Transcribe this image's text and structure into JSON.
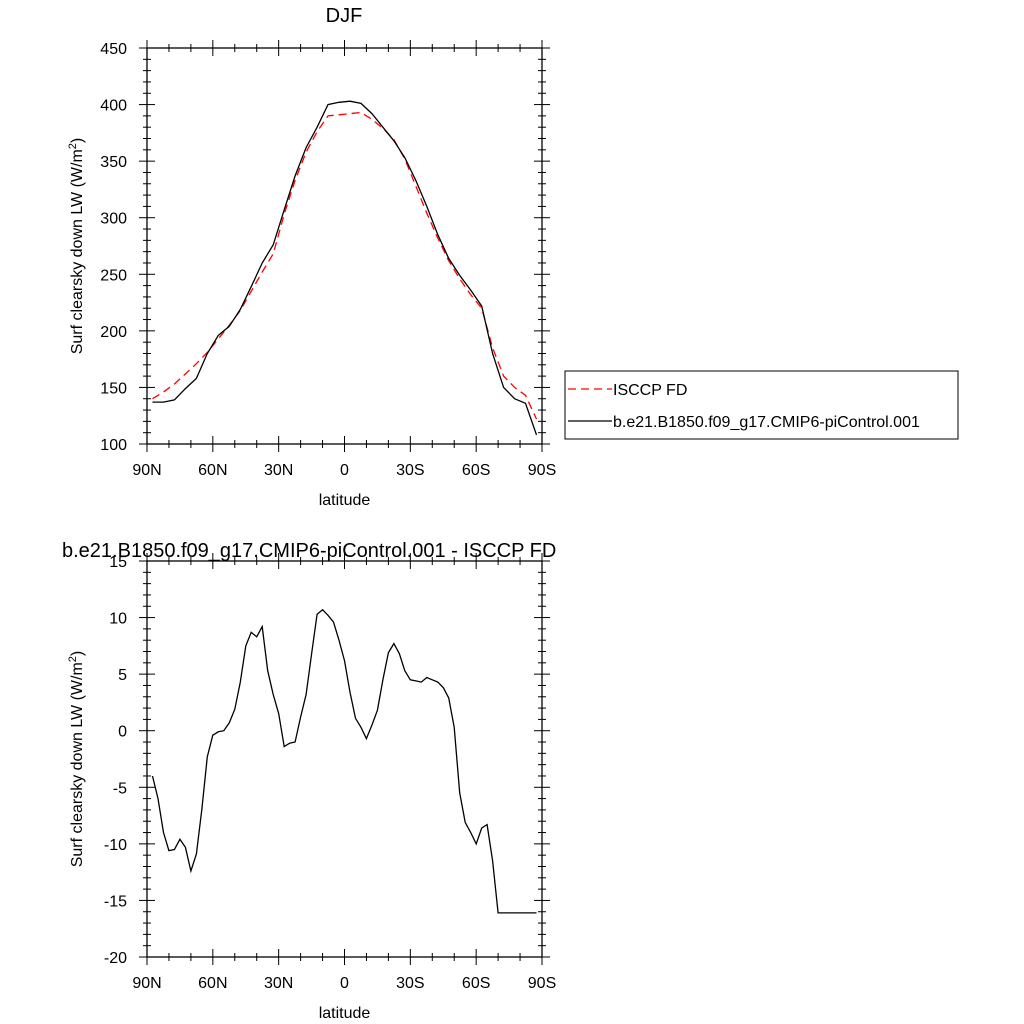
{
  "chart_data": [
    {
      "type": "line",
      "title": "DJF",
      "xlabel": "latitude",
      "ylabel_main": "Surf clearsky down LW (W/m",
      "ylabel_sup": "2",
      "ylabel_end": ")",
      "xlim": [
        90,
        -90
      ],
      "ylim": [
        100,
        450
      ],
      "yticks": [
        100,
        150,
        200,
        250,
        300,
        350,
        400,
        450
      ],
      "xticks": [
        {
          "value": 90,
          "label": "90N"
        },
        {
          "value": 60,
          "label": "60N"
        },
        {
          "value": 30,
          "label": "30N"
        },
        {
          "value": 0,
          "label": "0"
        },
        {
          "value": -30,
          "label": "30S"
        },
        {
          "value": -60,
          "label": "60S"
        },
        {
          "value": -90,
          "label": "90S"
        }
      ],
      "legend_position": "right",
      "series": [
        {
          "name": "ISCCP FD",
          "color": "#ff0000",
          "dash": "dashed",
          "x": [
            87.5,
            82.5,
            77.5,
            72.5,
            67.5,
            62.5,
            57.5,
            52.5,
            47.5,
            42.5,
            37.5,
            32.5,
            27.5,
            22.5,
            17.5,
            12.5,
            7.5,
            2.5,
            -2.5,
            -7.5,
            -12.5,
            -17.5,
            -22.5,
            -27.5,
            -32.5,
            -37.5,
            -42.5,
            -47.5,
            -52.5,
            -57.5,
            -62.5,
            -67.5,
            -72.5,
            -77.5,
            -82.5,
            -87.5
          ],
          "y": [
            140,
            146,
            153,
            162,
            171,
            181,
            193,
            205,
            218,
            235,
            252,
            268,
            303,
            333,
            358,
            376,
            390,
            391,
            392,
            393,
            387,
            379,
            369,
            352,
            328,
            304,
            282,
            262,
            246,
            232,
            220,
            185,
            160,
            150,
            143,
            122
          ]
        },
        {
          "name": "b.e21.B1850.f09_g17.CMIP6-piControl.001",
          "color": "#000000",
          "dash": "solid",
          "x": [
            87.5,
            82.5,
            77.5,
            72.5,
            67.5,
            62.5,
            57.5,
            52.5,
            47.5,
            42.5,
            37.5,
            32.5,
            27.5,
            22.5,
            17.5,
            12.5,
            7.5,
            2.5,
            -2.5,
            -7.5,
            -12.5,
            -17.5,
            -22.5,
            -27.5,
            -32.5,
            -37.5,
            -42.5,
            -47.5,
            -52.5,
            -57.5,
            -62.5,
            -67.5,
            -72.5,
            -77.5,
            -82.5,
            -87.5
          ],
          "y": [
            137,
            137,
            139,
            149,
            158,
            180,
            196,
            204,
            219,
            239,
            260,
            276,
            307,
            337,
            362,
            380,
            400,
            402,
            403,
            401,
            392,
            380,
            368,
            353,
            333,
            310,
            285,
            264,
            249,
            236,
            222,
            180,
            150,
            140,
            136,
            108
          ]
        }
      ]
    },
    {
      "type": "line",
      "title": "b.e21.B1850.f09_g17.CMIP6-piControl.001 - ISCCP FD",
      "xlabel": "latitude",
      "ylabel_main": "Surf clearsky down LW (W/m",
      "ylabel_sup": "2",
      "ylabel_end": ")",
      "xlim": [
        90,
        -90
      ],
      "ylim": [
        -20,
        15
      ],
      "yticks": [
        -20,
        -15,
        -10,
        -5,
        0,
        5,
        10,
        15
      ],
      "xticks": [
        {
          "value": 90,
          "label": "90N"
        },
        {
          "value": 60,
          "label": "60N"
        },
        {
          "value": 30,
          "label": "30N"
        },
        {
          "value": 0,
          "label": "0"
        },
        {
          "value": -30,
          "label": "30S"
        },
        {
          "value": -60,
          "label": "60S"
        },
        {
          "value": -90,
          "label": "90S"
        }
      ],
      "series": [
        {
          "color": "#000000",
          "dash": "solid",
          "x": [
            87.5,
            85,
            82.5,
            80,
            77.5,
            75,
            72.5,
            70,
            67.5,
            65,
            62.5,
            60,
            57.5,
            55,
            52.5,
            50,
            47.5,
            45,
            42.5,
            40,
            37.5,
            35,
            32.5,
            30,
            27.5,
            25,
            22.5,
            20,
            17.5,
            15,
            12.5,
            10,
            7.5,
            5,
            2.5,
            0,
            -2.5,
            -5,
            -7.5,
            -10,
            -12.5,
            -15,
            -17.5,
            -20,
            -22.5,
            -25,
            -27.5,
            -30,
            -32.5,
            -35,
            -37.5,
            -40,
            -42.5,
            -45,
            -47.5,
            -50,
            -52.5,
            -55,
            -57.5,
            -60,
            -62.5,
            -65,
            -67.5,
            -70,
            -72.5,
            -75,
            -77.5,
            -80,
            -82.5,
            -85,
            -87.5
          ],
          "y": [
            -4.0,
            -6.0,
            -9.0,
            -10.6,
            -10.5,
            -9.6,
            -10.3,
            -12.4,
            -10.9,
            -6.9,
            -2.3,
            -0.4,
            -0.1,
            0.0,
            0.7,
            1.9,
            4.3,
            7.5,
            8.7,
            8.3,
            9.2,
            5.3,
            3.2,
            1.5,
            -1.4,
            -1.1,
            -1.0,
            1.2,
            3.2,
            6.8,
            10.3,
            10.7,
            10.2,
            9.6,
            8.0,
            6.2,
            3.4,
            1.1,
            0.3,
            -0.7,
            0.5,
            1.8,
            4.5,
            6.9,
            7.7,
            6.8,
            5.3,
            4.5,
            4.4,
            4.3,
            4.7,
            4.5,
            4.3,
            3.8,
            2.9,
            0.3,
            -5.5,
            -8.1,
            -9.0,
            -10.0,
            -8.6,
            -8.3,
            -11.5,
            -16.1,
            -16.1,
            -16.1,
            -16.1,
            -16.1,
            -16.1,
            -16.1,
            -16.1
          ]
        }
      ]
    }
  ]
}
